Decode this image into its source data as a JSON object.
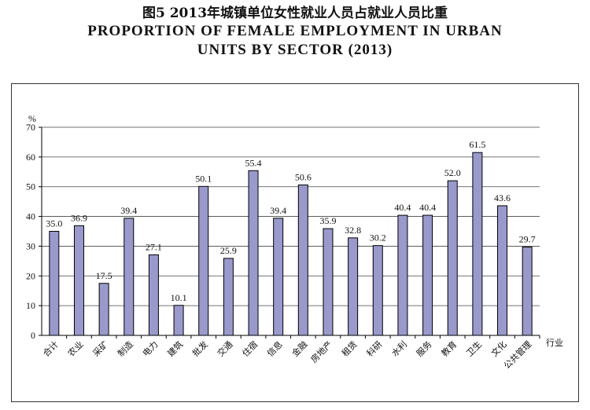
{
  "title": {
    "cn": "图5  2013年城镇单位女性就业人员占就业人员比重",
    "en_line1": "PROPORTION OF FEMALE EMPLOYMENT IN URBAN",
    "en_line2": "UNITS BY SECTOR (2013)"
  },
  "chart_data": {
    "type": "bar",
    "ylabel": "%",
    "xlabel": "行业",
    "ylim": [
      0,
      70
    ],
    "yticks": [
      0,
      10,
      20,
      30,
      40,
      50,
      60,
      70
    ],
    "grid": true,
    "bar_color": "#9999cc",
    "categories": [
      "合计",
      "农业",
      "采矿",
      "制造",
      "电力",
      "建筑",
      "批发",
      "交通",
      "住宿",
      "信息",
      "金融",
      "房地产",
      "租赁",
      "科研",
      "水利",
      "服务",
      "教育",
      "卫生",
      "文化",
      "公共管理"
    ],
    "values": [
      35.0,
      36.9,
      17.5,
      39.4,
      27.1,
      10.1,
      50.1,
      25.9,
      55.4,
      39.4,
      50.6,
      35.9,
      32.8,
      30.2,
      40.4,
      40.4,
      52.0,
      61.5,
      43.6,
      29.7
    ],
    "value_labels": [
      "35.0",
      "36.9",
      "17.5",
      "39.4",
      "27.1",
      "10.1",
      "50.1",
      "25.9",
      "55.4",
      "39.4",
      "50.6",
      "35.9",
      "32.8",
      "30.2",
      "40.4",
      "40.4",
      "52.0",
      "61.5",
      "43.6",
      "29.7"
    ]
  }
}
